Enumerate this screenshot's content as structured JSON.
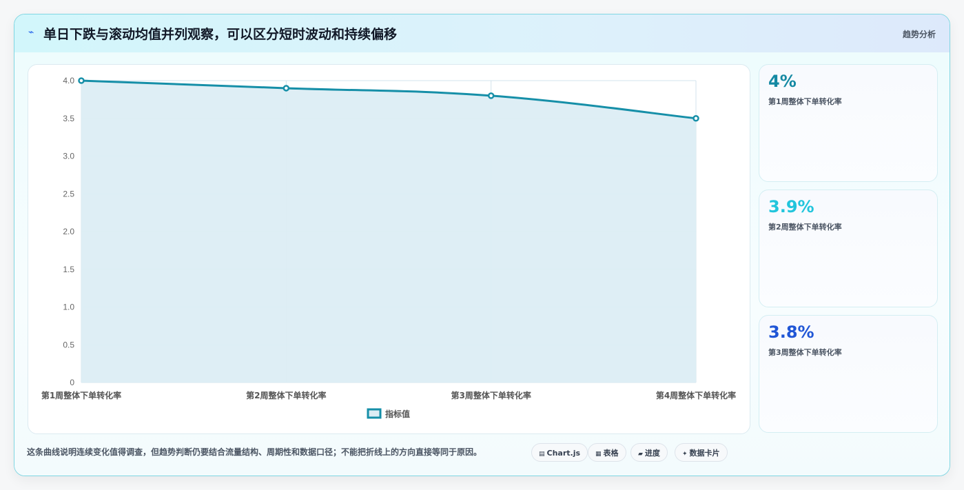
{
  "header": {
    "icon": "trend-line-icon",
    "title": "单日下跌与滚动均值并列观察，可以区分短时波动和持续偏移",
    "tag": "趋势分析"
  },
  "chart_data": {
    "type": "line",
    "categories": [
      "第1周整体下单转化率",
      "第2周整体下单转化率",
      "第3周整体下单转化率",
      "第4周整体下单转化率"
    ],
    "series": [
      {
        "name": "指标值",
        "values": [
          4.0,
          3.9,
          3.8,
          3.5
        ]
      }
    ],
    "ylim": [
      0,
      4.0
    ],
    "yticks": [
      "0",
      "0.5",
      "1.0",
      "1.5",
      "2.0",
      "2.5",
      "3.0",
      "3.5",
      "4.0"
    ],
    "fill": true,
    "grid": true,
    "legend": "bottom",
    "colors": {
      "line": "#168fa8",
      "fill": "#dcedf4",
      "grid": "#d3e3ec"
    }
  },
  "stats": [
    {
      "value": "4%",
      "label": "第1周整体下单转化率",
      "color": "#1589a3"
    },
    {
      "value": "3.9%",
      "label": "第2周整体下单转化率",
      "color": "#22c5dc"
    },
    {
      "value": "3.8%",
      "label": "第3周整体下单转化率",
      "color": "#2056d6"
    }
  ],
  "footer": {
    "note": "这条曲线说明连续变化值得调查，但趋势判断仍要结合流量结构、周期性和数据口径；不能把折线上的方向直接等同于原因。",
    "chips": [
      {
        "icon": "▤",
        "label": "Chart.js"
      },
      {
        "icon": "▦",
        "label": "表格"
      },
      {
        "icon": "▰",
        "label": "进度"
      },
      {
        "icon": "✦",
        "label": "数据卡片"
      }
    ]
  }
}
